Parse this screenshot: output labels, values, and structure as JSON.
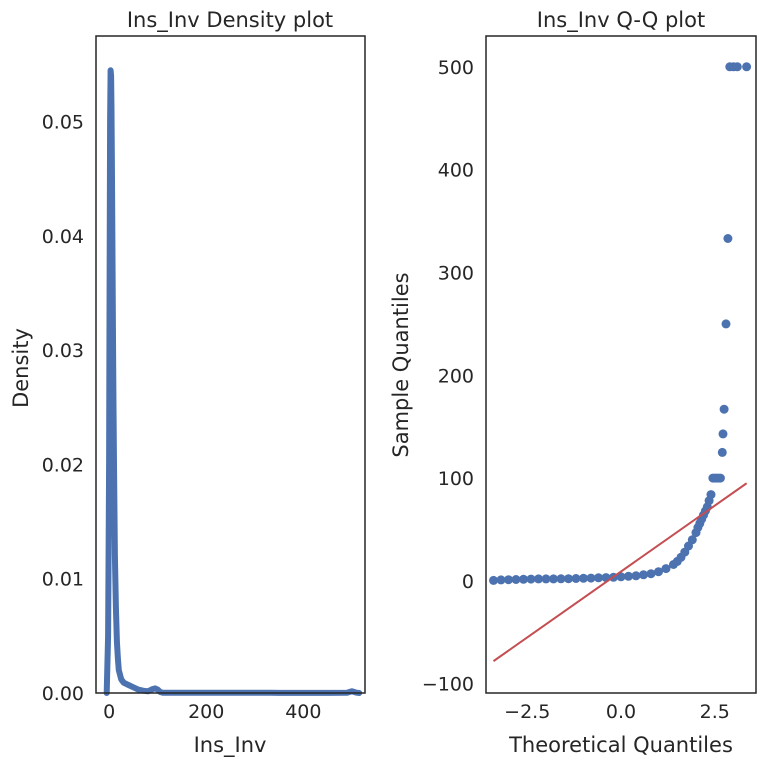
{
  "chart_data": [
    {
      "type": "line",
      "title": "Ins_Inv Density plot",
      "xlabel": "Ins_Inv",
      "ylabel": "Density",
      "xlim": [
        -27,
        527
      ],
      "ylim": [
        0,
        0.0575
      ],
      "xticks": [
        0,
        200,
        400
      ],
      "xtick_labels": [
        "0",
        "200",
        "400"
      ],
      "yticks": [
        0,
        0.01,
        0.02,
        0.03,
        0.04,
        0.05
      ],
      "ytick_labels": [
        "0.00",
        "0.01",
        "0.02",
        "0.03",
        "0.04",
        "0.05"
      ],
      "grid": false,
      "color": "#4C72B0",
      "series": [
        {
          "x": [
            -5,
            -2,
            0,
            1,
            2,
            3,
            4,
            5,
            6,
            7,
            8,
            9,
            10,
            12,
            14,
            16,
            18,
            20,
            25,
            30,
            40,
            50,
            60,
            70,
            80,
            90,
            95,
            100,
            105,
            110,
            150,
            200,
            250,
            300,
            333,
            350,
            400,
            450,
            490,
            500,
            510,
            515
          ],
          "y": [
            0.0,
            0.005,
            0.02,
            0.036,
            0.05,
            0.0545,
            0.054,
            0.051,
            0.045,
            0.038,
            0.031,
            0.025,
            0.02,
            0.012,
            0.0075,
            0.0045,
            0.003,
            0.002,
            0.0012,
            0.0009,
            0.0007,
            0.0005,
            0.0003,
            0.0002,
            0.00015,
            0.00035,
            0.0004,
            0.0003,
            0.0001,
            3e-05,
            2e-05,
            2e-05,
            3e-05,
            2e-05,
            2e-05,
            1e-05,
            1e-05,
            1e-05,
            2e-05,
            0.00015,
            3e-05,
            0.0
          ]
        }
      ]
    },
    {
      "type": "scatter",
      "title": "Ins_Inv Q-Q plot",
      "xlabel": "Theoretical Quantiles",
      "ylabel": "Sample Quantiles",
      "xlim": [
        -3.6,
        3.6
      ],
      "ylim": [
        -109,
        530
      ],
      "xticks": [
        -2.5,
        0,
        2.5
      ],
      "xtick_labels": [
        "−2.5",
        "0.0",
        "2.5"
      ],
      "yticks": [
        -100,
        0,
        100,
        200,
        300,
        400,
        500
      ],
      "ytick_labels": [
        "−100",
        "0",
        "100",
        "200",
        "300",
        "400",
        "500"
      ],
      "grid": false,
      "point_color": "#4C72B0",
      "line_color": "#C44E52",
      "series": [
        {
          "x": [
            -3.4,
            -3.2,
            -3.0,
            -2.8,
            -2.6,
            -2.4,
            -2.2,
            -2.0,
            -1.8,
            -1.6,
            -1.4,
            -1.2,
            -1.0,
            -0.8,
            -0.6,
            -0.4,
            -0.2,
            0.0,
            0.2,
            0.4,
            0.6,
            0.8,
            1.0,
            1.2,
            1.4,
            1.5,
            1.6,
            1.7,
            1.8,
            1.9,
            2.0,
            2.05,
            2.1,
            2.15,
            2.2,
            2.25,
            2.3,
            2.35,
            2.4,
            2.45,
            2.5,
            2.55,
            2.6,
            2.65,
            2.7,
            2.72,
            2.75,
            2.8,
            2.85,
            2.9,
            3.0,
            3.1,
            3.35
          ],
          "y": [
            0.5,
            1,
            1.2,
            1.4,
            1.6,
            1.8,
            2,
            2,
            2,
            2.1,
            2.2,
            2.4,
            2.6,
            2.8,
            3,
            3.2,
            3.5,
            4,
            4.5,
            5,
            6,
            7,
            9,
            12,
            16,
            19,
            23,
            28,
            34,
            40,
            47,
            52,
            56,
            60,
            64,
            68,
            72,
            78,
            84,
            100,
            100,
            100,
            100,
            100,
            125,
            143,
            167,
            250,
            333,
            500,
            500,
            500,
            500
          ]
        }
      ],
      "reference_line": {
        "x": [
          -3.4,
          3.35
        ],
        "y": [
          -78,
          95
        ]
      }
    }
  ]
}
